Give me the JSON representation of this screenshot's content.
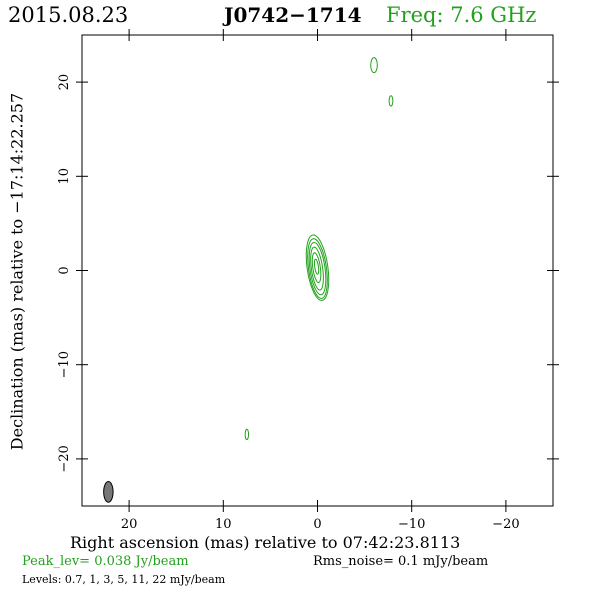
{
  "header": {
    "date": "2015.08.23",
    "source": "J0742−1714",
    "freq": "Freq: 7.6 GHz"
  },
  "chart_data": {
    "type": "contour",
    "title": "J0742−1714",
    "xlabel": "Right ascension (mas) relative to 07:42:23.8113",
    "ylabel": "Declination (mas) relative to −17:14:22.257",
    "xlim": [
      25,
      -25
    ],
    "ylim": [
      -25,
      25
    ],
    "x_ticks": [
      20,
      10,
      0,
      -10,
      -20
    ],
    "y_ticks": [
      20,
      10,
      0,
      -10,
      -20
    ],
    "x_tick_labels": [
      "20",
      "10",
      "0",
      "−10",
      "−20"
    ],
    "y_tick_labels": [
      "20",
      "10",
      "0",
      "−10",
      "−20"
    ],
    "contour_color": "#22a11c",
    "beam_color": "#777777",
    "contours": [
      {
        "x": 0.0,
        "y": 0.3,
        "rx": 1.1,
        "ry": 3.5,
        "angle": 8
      },
      {
        "x": 0.0,
        "y": 0.2,
        "rx": 0.95,
        "ry": 3.2,
        "angle": 8
      },
      {
        "x": 0.0,
        "y": 0.2,
        "rx": 0.8,
        "ry": 2.8,
        "angle": 8
      },
      {
        "x": 0.05,
        "y": 0.2,
        "rx": 0.6,
        "ry": 2.3,
        "angle": 8
      },
      {
        "x": 0.1,
        "y": 0.3,
        "rx": 0.4,
        "ry": 1.6,
        "angle": 8
      },
      {
        "x": 0.1,
        "y": 0.4,
        "rx": 0.2,
        "ry": 0.8,
        "angle": 8
      },
      {
        "x": -6.0,
        "y": 21.8,
        "rx": 0.35,
        "ry": 0.8,
        "angle": 0
      },
      {
        "x": -7.8,
        "y": 18.0,
        "rx": 0.2,
        "ry": 0.55,
        "angle": 0
      },
      {
        "x": 7.5,
        "y": -17.4,
        "rx": 0.18,
        "ry": 0.55,
        "angle": 0
      }
    ],
    "beam": {
      "x": 22.2,
      "y": -23.5,
      "rx": 0.5,
      "ry": 1.1,
      "angle": 0
    }
  },
  "footer": {
    "peak": "Peak_lev=  0.038 Jy/beam",
    "rms": "Rms_noise=   0.1 mJy/beam",
    "levels": "Levels: 0.7,    1,    3,    5,   11,   22  mJy/beam"
  }
}
